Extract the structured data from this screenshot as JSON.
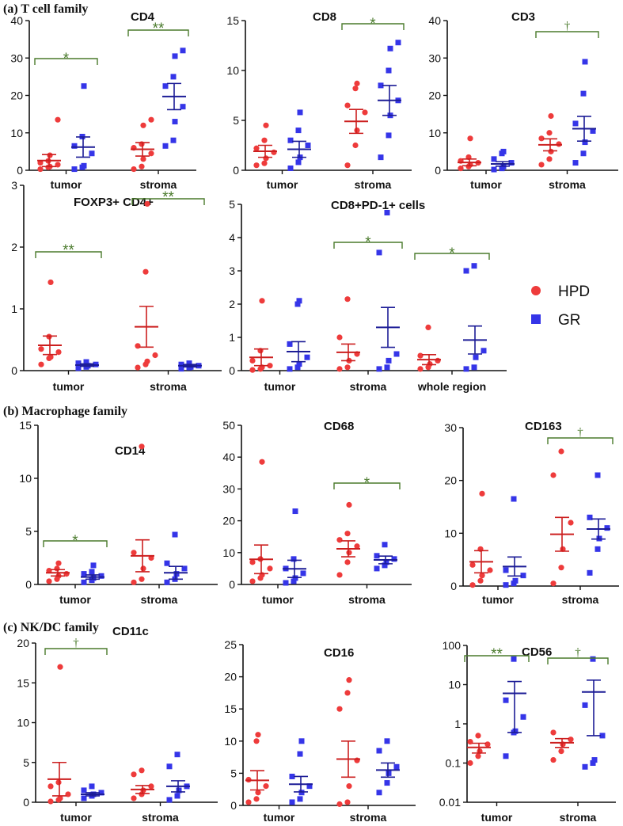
{
  "colors": {
    "hpd": "#ee3b3b",
    "gr": "#3535e8",
    "hpd_line": "#cc1f1f",
    "gr_line": "#1c1c96",
    "sig": "#4a7a2c"
  },
  "sections": {
    "a": "(a) T cell family",
    "b": "(b) Macrophage family",
    "c": "(c) NK/DC family"
  },
  "legend": {
    "hpd": "HPD",
    "gr": "GR"
  },
  "chart_data": [
    {
      "id": "CD4",
      "type": "scatter",
      "title": "CD4",
      "ylim": [
        0,
        40
      ],
      "yticks": [
        0,
        10,
        20,
        30,
        40
      ],
      "categories": [
        "tumor",
        "stroma"
      ],
      "series": [
        {
          "name": "HPD",
          "groups": [
            {
              "points": [
                0.3,
                0.8,
                1.0,
                1.5,
                2.0,
                2.5,
                4.0,
                13.5
              ],
              "mean": 2.6,
              "sem": 1.6
            },
            {
              "points": [
                0.3,
                1.0,
                3.0,
                4.5,
                6.0,
                7.0,
                12.0,
                13.5
              ],
              "mean": 5.6,
              "sem": 1.8
            }
          ]
        },
        {
          "name": "GR",
          "groups": [
            {
              "points": [
                0.3,
                0.8,
                1.2,
                4.5,
                6.5,
                9.0,
                22.5
              ],
              "mean": 6.2,
              "sem": 2.7
            },
            {
              "points": [
                6.5,
                8.0,
                13.0,
                17.0,
                22.5,
                25.0,
                30.5,
                32.0
              ],
              "mean": 19.7,
              "sem": 3.5
            }
          ]
        }
      ],
      "significance": [
        {
          "label": "*",
          "group": 0
        },
        {
          "label": "**",
          "group": 1
        }
      ]
    },
    {
      "id": "CD8",
      "type": "scatter",
      "title": "CD8",
      "ylim": [
        0,
        15
      ],
      "yticks": [
        0,
        5,
        10,
        15
      ],
      "categories": [
        "tumor",
        "stroma"
      ],
      "series": [
        {
          "name": "HPD",
          "groups": [
            {
              "points": [
                0.5,
                0.7,
                1.2,
                1.8,
                2.2,
                3.0,
                4.5
              ],
              "mean": 1.9,
              "sem": 0.6
            },
            {
              "points": [
                0.5,
                2.5,
                4.0,
                5.8,
                6.5,
                8.2,
                8.7
              ],
              "mean": 4.9,
              "sem": 1.2
            }
          ]
        },
        {
          "name": "GR",
          "groups": [
            {
              "points": [
                0.2,
                0.8,
                1.3,
                2.5,
                3.0,
                4.0,
                5.8
              ],
              "mean": 2.1,
              "sem": 0.8
            },
            {
              "points": [
                1.3,
                3.5,
                5.5,
                7.0,
                8.5,
                10.0,
                12.2,
                12.8
              ],
              "mean": 7.0,
              "sem": 1.5
            }
          ]
        }
      ],
      "significance": [
        {
          "label": "*",
          "group": 1
        }
      ]
    },
    {
      "id": "CD3",
      "type": "scatter",
      "title": "CD3",
      "ylim": [
        0,
        40
      ],
      "yticks": [
        0,
        10,
        20,
        30,
        40
      ],
      "categories": [
        "tumor",
        "stroma"
      ],
      "series": [
        {
          "name": "HPD",
          "groups": [
            {
              "points": [
                0.5,
                1.0,
                1.5,
                2.0,
                2.5,
                3.5,
                8.5
              ],
              "mean": 2.1,
              "sem": 0.9
            },
            {
              "points": [
                1.5,
                3.0,
                5.0,
                7.0,
                8.5,
                10.0,
                14.5
              ],
              "mean": 6.8,
              "sem": 1.6
            }
          ]
        },
        {
          "name": "GR",
          "groups": [
            {
              "points": [
                0.2,
                0.5,
                1.0,
                2.0,
                3.0,
                4.5,
                5.0
              ],
              "mean": 1.7,
              "sem": 0.6
            },
            {
              "points": [
                2.0,
                4.5,
                7.5,
                10.5,
                12.5,
                20.5,
                29.0
              ],
              "mean": 11.1,
              "sem": 3.3
            }
          ]
        }
      ],
      "significance": [
        {
          "label": "†",
          "group": 1
        }
      ]
    },
    {
      "id": "FOXP3",
      "type": "scatter",
      "title": "FOXP3+ CD4+",
      "ylim": [
        0,
        3
      ],
      "yticks": [
        0,
        1,
        2,
        3
      ],
      "categories": [
        "tumor",
        "stroma"
      ],
      "series": [
        {
          "name": "HPD",
          "groups": [
            {
              "points": [
                0.1,
                0.2,
                0.22,
                0.3,
                0.35,
                0.55,
                1.43
              ],
              "mean": 0.41,
              "sem": 0.15
            },
            {
              "points": [
                0.05,
                0.1,
                0.15,
                0.25,
                0.4,
                1.6,
                2.7
              ],
              "mean": 0.71,
              "sem": 0.33
            }
          ]
        },
        {
          "name": "GR",
          "groups": [
            {
              "points": [
                0.04,
                0.06,
                0.08,
                0.1,
                0.12,
                0.14
              ],
              "mean": 0.09,
              "sem": 0.02
            },
            {
              "points": [
                0.03,
                0.05,
                0.06,
                0.08,
                0.1,
                0.12
              ],
              "mean": 0.08,
              "sem": 0.02
            }
          ]
        }
      ],
      "significance": [
        {
          "label": "**",
          "group": 0
        },
        {
          "label": "**",
          "group": 1
        }
      ]
    },
    {
      "id": "CD8PD1",
      "type": "scatter",
      "title": "CD8+PD-1+ cells",
      "ylim": [
        0,
        5
      ],
      "yticks": [
        0,
        1,
        2,
        3,
        4,
        5
      ],
      "categories": [
        "tumor",
        "stroma",
        "whole region"
      ],
      "series": [
        {
          "name": "HPD",
          "groups": [
            {
              "points": [
                0.02,
                0.05,
                0.1,
                0.15,
                0.3,
                0.6,
                2.1
              ],
              "mean": 0.4,
              "sem": 0.25
            },
            {
              "points": [
                0.05,
                0.1,
                0.3,
                0.5,
                1.0,
                2.15
              ],
              "mean": 0.55,
              "sem": 0.25
            },
            {
              "points": [
                0.05,
                0.1,
                0.2,
                0.3,
                0.45,
                1.3
              ],
              "mean": 0.33,
              "sem": 0.15
            }
          ]
        },
        {
          "name": "GR",
          "groups": [
            {
              "points": [
                0.05,
                0.1,
                0.2,
                0.4,
                0.8,
                2.0,
                2.1
              ],
              "mean": 0.57,
              "sem": 0.3
            },
            {
              "points": [
                0.05,
                0.1,
                0.3,
                0.5,
                3.55,
                4.75
              ],
              "mean": 1.3,
              "sem": 0.6
            },
            {
              "points": [
                0.05,
                0.1,
                0.4,
                0.6,
                3.0,
                3.15
              ],
              "mean": 0.92,
              "sem": 0.42
            }
          ]
        }
      ],
      "significance": [
        {
          "label": "*",
          "group": 1
        },
        {
          "label": "*",
          "group": 2
        }
      ]
    },
    {
      "id": "CD14",
      "type": "scatter",
      "title": "CD14",
      "ylim": [
        0,
        15
      ],
      "yticks": [
        0,
        5,
        10,
        15
      ],
      "categories": [
        "tumor",
        "stroma"
      ],
      "series": [
        {
          "name": "HPD",
          "groups": [
            {
              "points": [
                0.3,
                0.5,
                0.8,
                1.0,
                1.3,
                1.5,
                2.0
              ],
              "mean": 1.1,
              "sem": 0.3
            },
            {
              "points": [
                0.2,
                0.5,
                1.5,
                2.5,
                3.0,
                13.0
              ],
              "mean": 2.7,
              "sem": 1.5
            }
          ]
        },
        {
          "name": "GR",
          "groups": [
            {
              "points": [
                0.2,
                0.4,
                0.6,
                0.8,
                1.0,
                1.2,
                1.8
              ],
              "mean": 0.7,
              "sem": 0.2
            },
            {
              "points": [
                0.2,
                0.5,
                1.0,
                1.5,
                2.0,
                4.7
              ],
              "mean": 1.1,
              "sem": 0.6
            }
          ]
        }
      ],
      "significance": [
        {
          "label": "*",
          "group": 0
        }
      ]
    },
    {
      "id": "CD68",
      "type": "scatter",
      "title": "CD68",
      "ylim": [
        0,
        50
      ],
      "yticks": [
        0,
        10,
        20,
        30,
        40,
        50
      ],
      "categories": [
        "tumor",
        "stroma"
      ],
      "series": [
        {
          "name": "HPD",
          "groups": [
            {
              "points": [
                1.0,
                2.0,
                3.0,
                5.0,
                7.0,
                8.0,
                38.5
              ],
              "mean": 7.9,
              "sem": 4.5
            },
            {
              "points": [
                3.0,
                7.0,
                10.0,
                12.0,
                14.0,
                16.0,
                25.0
              ],
              "mean": 11.2,
              "sem": 2.5
            }
          ]
        },
        {
          "name": "GR",
          "groups": [
            {
              "points": [
                0.5,
                1.0,
                2.0,
                3.5,
                5.0,
                8.0,
                23.0
              ],
              "mean": 4.9,
              "sem": 2.7
            },
            {
              "points": [
                5.0,
                6.0,
                7.0,
                8.0,
                9.0,
                12.5
              ],
              "mean": 7.7,
              "sem": 1.2
            }
          ]
        }
      ],
      "significance": [
        {
          "label": "*",
          "group": 1
        }
      ]
    },
    {
      "id": "CD163",
      "type": "scatter",
      "title": "CD163",
      "ylim": [
        0,
        30
      ],
      "yticks": [
        0,
        10,
        20,
        30
      ],
      "categories": [
        "tumor",
        "stroma"
      ],
      "series": [
        {
          "name": "HPD",
          "groups": [
            {
              "points": [
                0.2,
                1.0,
                2.0,
                3.0,
                4.0,
                7.0,
                17.5
              ],
              "mean": 4.6,
              "sem": 2.1
            },
            {
              "points": [
                0.5,
                3.5,
                7.0,
                12.0,
                21.0,
                25.5
              ],
              "mean": 9.8,
              "sem": 3.2
            }
          ]
        },
        {
          "name": "GR",
          "groups": [
            {
              "points": [
                0.2,
                0.5,
                1.0,
                2.0,
                3.0,
                16.5
              ],
              "mean": 3.7,
              "sem": 1.8
            },
            {
              "points": [
                2.5,
                7.0,
                9.0,
                11.0,
                13.0,
                21.0
              ],
              "mean": 10.8,
              "sem": 1.9
            }
          ]
        }
      ],
      "significance": [
        {
          "label": "†",
          "group": 1
        }
      ]
    },
    {
      "id": "CD11c",
      "type": "scatter",
      "title": "CD11c",
      "ylim": [
        0,
        20
      ],
      "yticks": [
        0,
        5,
        10,
        15,
        20
      ],
      "categories": [
        "tumor",
        "stroma"
      ],
      "series": [
        {
          "name": "HPD",
          "groups": [
            {
              "points": [
                0.1,
                0.3,
                0.5,
                1.0,
                2.0,
                2.5,
                17.0
              ],
              "mean": 2.9,
              "sem": 2.1
            },
            {
              "points": [
                0.5,
                1.0,
                1.5,
                2.0,
                3.5,
                4.0
              ],
              "mean": 1.6,
              "sem": 0.5
            }
          ]
        },
        {
          "name": "GR",
          "groups": [
            {
              "points": [
                0.5,
                0.8,
                1.0,
                1.2,
                1.5,
                2.0
              ],
              "mean": 1.0,
              "sem": 0.2
            },
            {
              "points": [
                0.3,
                0.8,
                1.5,
                2.0,
                4.5,
                6.0
              ],
              "mean": 2.0,
              "sem": 0.7
            }
          ]
        }
      ],
      "significance": [
        {
          "label": "†",
          "group": 0
        }
      ]
    },
    {
      "id": "CD16",
      "type": "scatter",
      "title": "CD16",
      "ylim": [
        0,
        25
      ],
      "yticks": [
        0,
        5,
        10,
        15,
        20,
        25
      ],
      "categories": [
        "tumor",
        "stroma"
      ],
      "series": [
        {
          "name": "HPD",
          "groups": [
            {
              "points": [
                0.5,
                1.0,
                2.0,
                3.0,
                4.0,
                10.0,
                11.0
              ],
              "mean": 3.9,
              "sem": 1.5
            },
            {
              "points": [
                0.2,
                0.5,
                3.0,
                7.0,
                15.0,
                17.5,
                19.5
              ],
              "mean": 7.2,
              "sem": 2.8
            }
          ]
        },
        {
          "name": "GR",
          "groups": [
            {
              "points": [
                0.5,
                1.0,
                2.0,
                3.0,
                4.5,
                8.0,
                10.0
              ],
              "mean": 3.3,
              "sem": 1.2
            },
            {
              "points": [
                2.0,
                3.5,
                5.0,
                6.0,
                8.5,
                10.0
              ],
              "mean": 5.5,
              "sem": 1.1
            }
          ]
        }
      ],
      "significance": []
    },
    {
      "id": "CD56",
      "type": "scatter",
      "title": "CD56",
      "yscale": "log",
      "ylim": [
        0.01,
        100
      ],
      "yticks": [
        0.01,
        0.1,
        1,
        10,
        100
      ],
      "ytick_labels": [
        "0.01",
        "0.1",
        "1",
        "10",
        "100"
      ],
      "categories": [
        "tumor",
        "stroma"
      ],
      "series": [
        {
          "name": "HPD",
          "groups": [
            {
              "points": [
                0.1,
                0.15,
                0.2,
                0.3,
                0.35,
                0.5
              ],
              "mean": 0.25,
              "sem_range": [
                0.18,
                0.32
              ]
            },
            {
              "points": [
                0.12,
                0.2,
                0.3,
                0.4,
                0.6
              ],
              "mean": 0.33,
              "sem_range": [
                0.25,
                0.42
              ]
            }
          ]
        },
        {
          "name": "GR",
          "groups": [
            {
              "points": [
                0.15,
                0.6,
                0.65,
                1.5,
                4.0,
                45.0
              ],
              "mean": 6.0,
              "sem_range": [
                0.6,
                12.0
              ]
            },
            {
              "points": [
                0.08,
                0.1,
                0.12,
                0.5,
                3.0,
                45.0
              ],
              "mean": 6.5,
              "sem_range": [
                0.5,
                13.0
              ]
            }
          ]
        }
      ],
      "significance": [
        {
          "label": "**",
          "group": 0
        },
        {
          "label": "†",
          "group": 1
        }
      ]
    }
  ]
}
